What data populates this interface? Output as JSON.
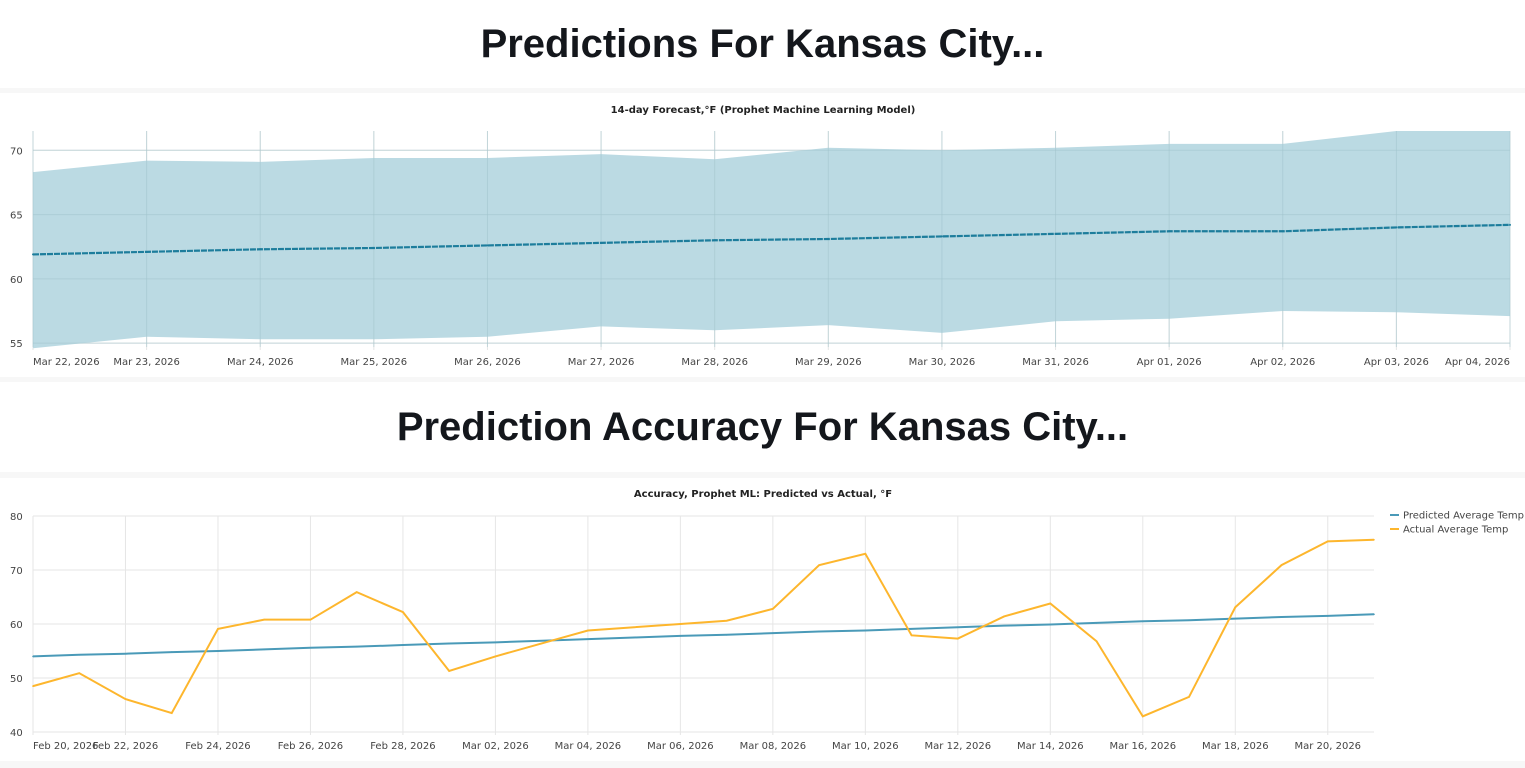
{
  "page": {
    "forecast_heading": "Predictions For Kansas City...",
    "accuracy_heading": "Prediction Accuracy For Kansas City..."
  },
  "colors": {
    "band_fill": "#b7d8e1",
    "forecast_line": "#1d7d9c",
    "predicted": "#4a9ab8",
    "actual": "#fdb62d",
    "grid": "#e6e6e6"
  },
  "chart_data": [
    {
      "type": "area",
      "title": "14-day Forecast,°F (Prophet Machine Learning Model)",
      "xlabel": "",
      "ylabel": "",
      "grid": true,
      "ylim": [
        54.7,
        71.5
      ],
      "yticks": [
        55,
        60,
        65,
        70
      ],
      "x": [
        "Mar 22, 2026",
        "Mar 23, 2026",
        "Mar 24, 2026",
        "Mar 25, 2026",
        "Mar 26, 2026",
        "Mar 27, 2026",
        "Mar 28, 2026",
        "Mar 29, 2026",
        "Mar 30, 2026",
        "Mar 31, 2026",
        "Apr 01, 2026",
        "Apr 02, 2026",
        "Apr 03, 2026",
        "Apr 04, 2026"
      ],
      "series": [
        {
          "role": "forecast",
          "values": [
            61.9,
            62.1,
            62.3,
            62.4,
            62.6,
            62.8,
            63.0,
            63.1,
            63.3,
            63.5,
            63.7,
            63.7,
            64.0,
            64.2
          ]
        },
        {
          "role": "upper_bound",
          "values": [
            68.3,
            69.2,
            69.1,
            69.4,
            69.4,
            69.7,
            69.3,
            70.2,
            70.0,
            70.2,
            70.5,
            70.5,
            71.5,
            71.5
          ]
        },
        {
          "role": "lower_bound",
          "values": [
            54.6,
            55.5,
            55.3,
            55.3,
            55.5,
            56.3,
            56.0,
            56.4,
            55.8,
            56.7,
            56.9,
            57.5,
            57.4,
            57.1
          ]
        }
      ]
    },
    {
      "type": "line",
      "title": "Accuracy, Prophet ML: Predicted vs Actual, °F",
      "xlabel": "",
      "ylabel": "",
      "grid": true,
      "ylim": [
        40,
        80
      ],
      "yticks": [
        40,
        50,
        60,
        70,
        80
      ],
      "legend_position": "top-right",
      "x": [
        "Feb 20, 2026",
        "Feb 21, 2026",
        "Feb 22, 2026",
        "Feb 23, 2026",
        "Feb 24, 2026",
        "Feb 25, 2026",
        "Feb 26, 2026",
        "Feb 27, 2026",
        "Feb 28, 2026",
        "Mar 01, 2026",
        "Mar 02, 2026",
        "Mar 03, 2026",
        "Mar 04, 2026",
        "Mar 05, 2026",
        "Mar 06, 2026",
        "Mar 07, 2026",
        "Mar 08, 2026",
        "Mar 09, 2026",
        "Mar 10, 2026",
        "Mar 11, 2026",
        "Mar 12, 2026",
        "Mar 13, 2026",
        "Mar 14, 2026",
        "Mar 15, 2026",
        "Mar 16, 2026",
        "Mar 17, 2026",
        "Mar 18, 2026",
        "Mar 19, 2026",
        "Mar 20, 2026",
        "Mar 21, 2026"
      ],
      "xtick_labels": [
        "Feb 20, 2026",
        "Feb 22, 2026",
        "Feb 24, 2026",
        "Feb 26, 2026",
        "Feb 28, 2026",
        "Mar 02, 2026",
        "Mar 04, 2026",
        "Mar 06, 2026",
        "Mar 08, 2026",
        "Mar 10, 2026",
        "Mar 12, 2026",
        "Mar 14, 2026",
        "Mar 16, 2026",
        "Mar 18, 2026",
        "Mar 20, 2026"
      ],
      "series": [
        {
          "name": "Predicted Average Temp",
          "values": [
            54.0,
            54.3,
            54.5,
            54.8,
            55.0,
            55.3,
            55.6,
            55.8,
            56.1,
            56.4,
            56.6,
            56.9,
            57.2,
            57.5,
            57.8,
            58.0,
            58.3,
            58.6,
            58.8,
            59.1,
            59.4,
            59.7,
            59.9,
            60.2,
            60.5,
            60.7,
            61.0,
            61.3,
            61.5,
            61.8
          ]
        },
        {
          "name": "Actual Average Temp",
          "values": [
            48.5,
            50.9,
            46.1,
            43.5,
            59.1,
            60.8,
            60.8,
            65.9,
            62.2,
            51.3,
            54.0,
            56.4,
            58.8,
            59.4,
            60.0,
            60.6,
            62.8,
            70.9,
            73.0,
            57.9,
            57.3,
            61.4,
            63.8,
            56.8,
            42.9,
            46.5,
            63.1,
            70.9,
            75.3,
            75.6
          ]
        }
      ]
    }
  ]
}
